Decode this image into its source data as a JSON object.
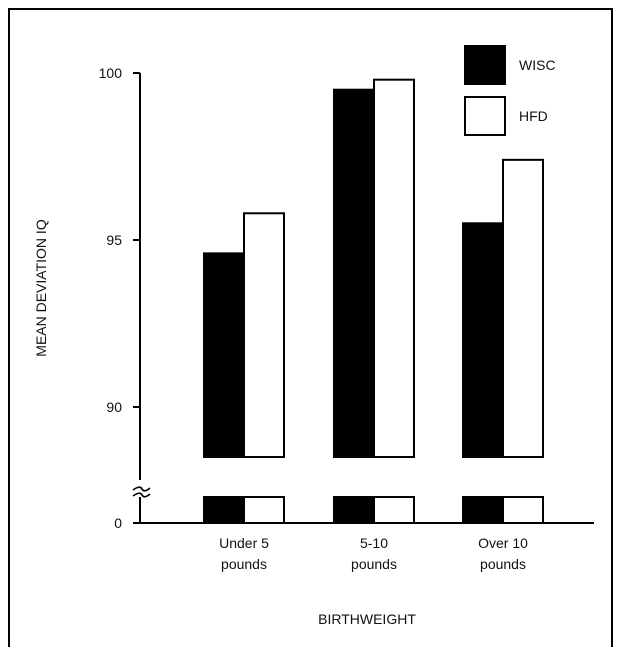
{
  "chart_data": {
    "type": "bar",
    "title": "",
    "xlabel": "BIRTHWEIGHT",
    "ylabel": "MEAN DEVIATION IQ",
    "categories": [
      [
        "Under 5",
        "pounds"
      ],
      [
        "5-10",
        "pounds"
      ],
      [
        "Over 10",
        "pounds"
      ]
    ],
    "series": [
      {
        "name": "WISC",
        "values": [
          94.6,
          99.5,
          95.5
        ],
        "color": "#000000"
      },
      {
        "name": "HFD",
        "values": [
          95.8,
          99.8,
          97.4
        ],
        "color": "#ffffff"
      }
    ],
    "ylim": [
      87.5,
      100
    ],
    "yticks": [
      "100",
      "95",
      "90"
    ],
    "ytick_values": [
      100,
      95,
      90
    ],
    "axis_break": true,
    "zero_label": "0",
    "legend": "top-right",
    "grid": false
  }
}
